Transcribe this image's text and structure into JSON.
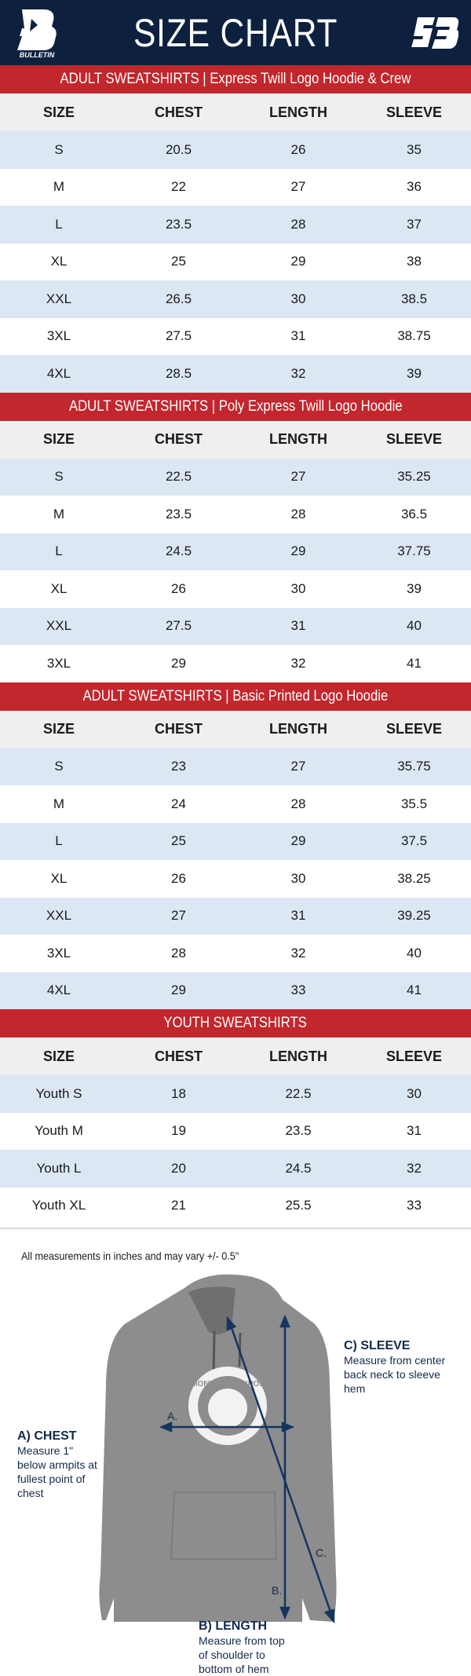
{
  "header": {
    "title": "SIZE CHART",
    "brand_left": "BULLETIN",
    "brand_right": "SB",
    "bg_color": "#0d213f",
    "accent_color": "#c1272d"
  },
  "columns": [
    "SIZE",
    "CHEST",
    "LENGTH",
    "SLEEVE"
  ],
  "sections": [
    {
      "title": "ADULT SWEATSHIRTS | Express Twill Logo Hoodie & Crew",
      "rows": [
        [
          "S",
          "20.5",
          "26",
          "35"
        ],
        [
          "M",
          "22",
          "27",
          "36"
        ],
        [
          "L",
          "23.5",
          "28",
          "37"
        ],
        [
          "XL",
          "25",
          "29",
          "38"
        ],
        [
          "XXL",
          "26.5",
          "30",
          "38.5"
        ],
        [
          "3XL",
          "27.5",
          "31",
          "38.75"
        ],
        [
          "4XL",
          "28.5",
          "32",
          "39"
        ]
      ]
    },
    {
      "title": "ADULT SWEATSHIRTS | Poly Express Twill Logo Hoodie",
      "rows": [
        [
          "S",
          "22.5",
          "27",
          "35.25"
        ],
        [
          "M",
          "23.5",
          "28",
          "36.5"
        ],
        [
          "L",
          "24.5",
          "29",
          "37.75"
        ],
        [
          "XL",
          "26",
          "30",
          "39"
        ],
        [
          "XXL",
          "27.5",
          "31",
          "40"
        ],
        [
          "3XL",
          "29",
          "32",
          "41"
        ]
      ]
    },
    {
      "title": "ADULT SWEATSHIRTS | Basic Printed Logo Hoodie",
      "rows": [
        [
          "S",
          "23",
          "27",
          "35.75"
        ],
        [
          "M",
          "24",
          "28",
          "35.5"
        ],
        [
          "L",
          "25",
          "29",
          "37.5"
        ],
        [
          "XL",
          "26",
          "30",
          "38.25"
        ],
        [
          "XXL",
          "27",
          "31",
          "39.25"
        ],
        [
          "3XL",
          "28",
          "32",
          "40"
        ],
        [
          "4XL",
          "29",
          "33",
          "41"
        ]
      ]
    },
    {
      "title": "YOUTH SWEATSHIRTS",
      "rows": [
        [
          "Youth S",
          "18",
          "22.5",
          "30"
        ],
        [
          "Youth M",
          "19",
          "23.5",
          "31"
        ],
        [
          "Youth L",
          "20",
          "24.5",
          "32"
        ],
        [
          "Youth XL",
          "21",
          "25.5",
          "33"
        ]
      ]
    }
  ],
  "footer": {
    "note": "All measurements in inches and may vary +/- 0.5\"",
    "graphic_text": "MONTREAL EXPOS",
    "markers": {
      "a": "A.",
      "b": "B.",
      "c": "C."
    },
    "chest": {
      "title": "A) CHEST",
      "desc": "Measure 1\" below armpits at fullest point of chest"
    },
    "length": {
      "title": "B) LENGTH",
      "desc": "Measure from top of shoulder to bottom of hem"
    },
    "sleeve": {
      "title": "C) SLEEVE",
      "desc": "Measure from center back neck to sleeve hem"
    }
  }
}
